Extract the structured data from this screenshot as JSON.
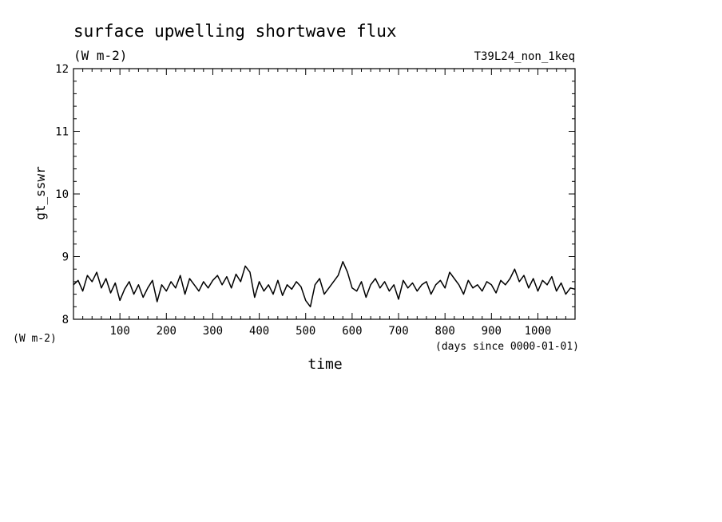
{
  "chart_data": {
    "type": "line",
    "title": "surface upwelling shortwave flux",
    "subtitle": "(W m-2)",
    "run_label": "T39L24_non_1keq",
    "ylabel": "gt_sswr",
    "yunit_label": "(W m-2)",
    "xlabel": "time",
    "xunit_label": "(days since 0000-01-01)",
    "xlim": [
      0,
      1080
    ],
    "ylim": [
      8,
      12
    ],
    "xticks": [
      "100",
      "200",
      "300",
      "400",
      "500",
      "600",
      "700",
      "800",
      "900",
      "1000"
    ],
    "yticks": [
      "8",
      "9",
      "10",
      "11",
      "12"
    ],
    "series": [
      {
        "x": [
          0,
          10,
          20,
          30,
          40,
          50,
          60,
          70,
          80,
          90,
          100,
          110,
          120,
          130,
          140,
          150,
          160,
          170,
          180,
          190,
          200,
          210,
          220,
          230,
          240,
          250,
          260,
          270,
          280,
          290,
          300,
          310,
          320,
          330,
          340,
          350,
          360,
          370,
          380,
          390,
          400,
          410,
          420,
          430,
          440,
          450,
          460,
          470,
          480,
          490,
          500,
          510,
          520,
          530,
          540,
          550,
          560,
          570,
          580,
          590,
          600,
          610,
          620,
          630,
          640,
          650,
          660,
          670,
          680,
          690,
          700,
          710,
          720,
          730,
          740,
          750,
          760,
          770,
          780,
          790,
          800,
          810,
          820,
          830,
          840,
          850,
          860,
          870,
          880,
          890,
          900,
          910,
          920,
          930,
          940,
          950,
          960,
          970,
          980,
          990,
          1000,
          1010,
          1020,
          1030,
          1040,
          1050,
          1060,
          1070,
          1080
        ],
        "y": [
          8.55,
          8.62,
          8.45,
          8.7,
          8.6,
          8.75,
          8.5,
          8.65,
          8.42,
          8.58,
          8.3,
          8.48,
          8.6,
          8.4,
          8.55,
          8.35,
          8.5,
          8.62,
          8.28,
          8.55,
          8.45,
          8.6,
          8.5,
          8.7,
          8.4,
          8.65,
          8.55,
          8.45,
          8.6,
          8.5,
          8.62,
          8.7,
          8.55,
          8.68,
          8.5,
          8.72,
          8.6,
          8.85,
          8.75,
          8.35,
          8.6,
          8.45,
          8.55,
          8.4,
          8.62,
          8.38,
          8.55,
          8.48,
          8.6,
          8.52,
          8.3,
          8.2,
          8.55,
          8.65,
          8.4,
          8.5,
          8.6,
          8.7,
          8.92,
          8.75,
          8.5,
          8.45,
          8.6,
          8.35,
          8.55,
          8.65,
          8.5,
          8.6,
          8.45,
          8.55,
          8.32,
          8.62,
          8.5,
          8.58,
          8.45,
          8.55,
          8.6,
          8.4,
          8.55,
          8.62,
          8.5,
          8.75,
          8.65,
          8.55,
          8.4,
          8.62,
          8.5,
          8.55,
          8.45,
          8.6,
          8.55,
          8.42,
          8.62,
          8.55,
          8.65,
          8.8,
          8.6,
          8.7,
          8.5,
          8.65,
          8.45,
          8.62,
          8.55,
          8.68,
          8.45,
          8.58,
          8.4,
          8.5,
          8.48
        ]
      }
    ]
  }
}
